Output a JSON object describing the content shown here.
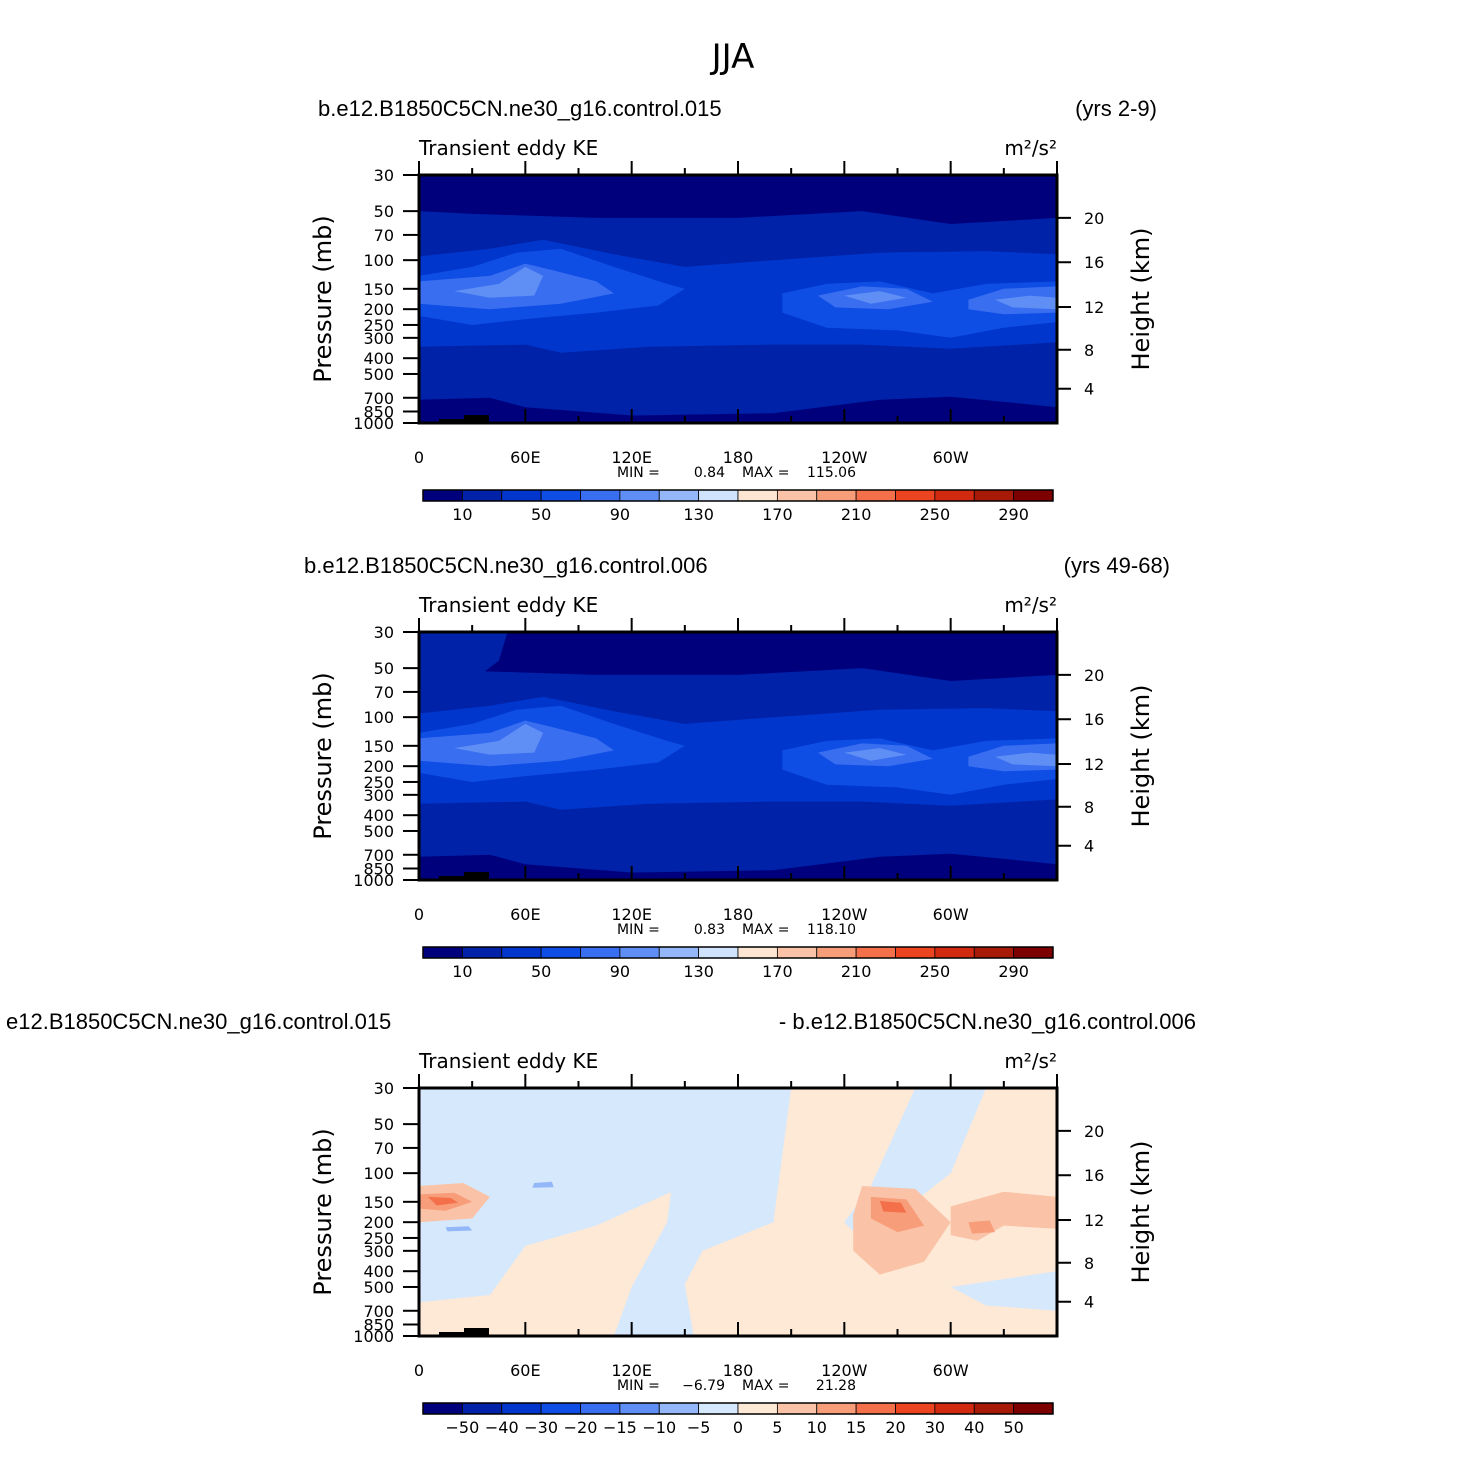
{
  "figure": {
    "season": "JJA"
  },
  "colorbars": {
    "abs": {
      "colors": [
        "#00007d",
        "#0022a8",
        "#0036cb",
        "#0f4ee5",
        "#3a6ef0",
        "#5f8ef5",
        "#93b7f8",
        "#cfe4fc",
        "#fde5d3",
        "#fac3a7",
        "#f79d7a",
        "#f4704a",
        "#ec4420",
        "#d12a10",
        "#a81a08",
        "#7d0000"
      ],
      "labels": [
        "10",
        "50",
        "90",
        "130",
        "170",
        "210",
        "250",
        "290"
      ],
      "label_slots": [
        1,
        3,
        5,
        7,
        9,
        11,
        13,
        15
      ]
    },
    "diff": {
      "colors": [
        "#00007d",
        "#0022a8",
        "#0036cb",
        "#0f4ee5",
        "#3a6ef0",
        "#5f8ef5",
        "#93b7f8",
        "#d6e8fb",
        "#fde9d6",
        "#fac3a7",
        "#f79d7a",
        "#f4704a",
        "#ec4420",
        "#d12a10",
        "#a81a08",
        "#7d0000"
      ],
      "labels": [
        "−50",
        "−40",
        "−30",
        "−20",
        "−15",
        "−10",
        "−5",
        "0",
        "5",
        "10",
        "15",
        "20",
        "30",
        "40",
        "50"
      ],
      "label_slots": [
        1,
        2,
        3,
        4,
        5,
        6,
        7,
        8,
        9,
        10,
        11,
        12,
        13,
        14,
        15
      ]
    }
  },
  "chart_data": [
    {
      "type": "heatmap",
      "case": "b.e12.B1850C5CN.ne30_g16.control.015",
      "years": "(yrs 2-9)",
      "variable": "Transient eddy KE",
      "units": "m²/s²",
      "ylabel": "Pressure (mb)",
      "ylabel_right": "Height (km)",
      "x_ticks": [
        "0",
        "60E",
        "120E",
        "180",
        "120W",
        "60W"
      ],
      "y_ticks": [
        "30",
        "50",
        "70",
        "100",
        "150",
        "200",
        "250",
        "300",
        "400",
        "500",
        "700",
        "850",
        "1000"
      ],
      "y_ticks_right": [
        "20",
        "16",
        "12",
        "8",
        "4"
      ],
      "min_label": "MIN =",
      "min_value": "0.84",
      "max_label": "MAX =",
      "max_value": "115.06",
      "colorbar": "abs",
      "levels": [
        10,
        30,
        50,
        70,
        90,
        110,
        130,
        150,
        170,
        190,
        210,
        230,
        250,
        270,
        290
      ]
    },
    {
      "type": "heatmap",
      "case": "b.e12.B1850C5CN.ne30_g16.control.006",
      "years": "(yrs 49-68)",
      "variable": "Transient eddy KE",
      "units": "m²/s²",
      "ylabel": "Pressure (mb)",
      "ylabel_right": "Height (km)",
      "x_ticks": [
        "0",
        "60E",
        "120E",
        "180",
        "120W",
        "60W"
      ],
      "y_ticks": [
        "30",
        "50",
        "70",
        "100",
        "150",
        "200",
        "250",
        "300",
        "400",
        "500",
        "700",
        "850",
        "1000"
      ],
      "y_ticks_right": [
        "20",
        "16",
        "12",
        "8",
        "4"
      ],
      "min_label": "MIN =",
      "min_value": "0.83",
      "max_label": "MAX =",
      "max_value": "118.10",
      "colorbar": "abs",
      "levels": [
        10,
        30,
        50,
        70,
        90,
        110,
        130,
        150,
        170,
        190,
        210,
        230,
        250,
        270,
        290
      ]
    },
    {
      "type": "heatmap",
      "case_left": "e12.B1850C5CN.ne30_g16.control.015",
      "case_right": "- b.e12.B1850C5CN.ne30_g16.control.006",
      "variable": "Transient eddy KE",
      "units": "m²/s²",
      "ylabel": "Pressure (mb)",
      "ylabel_right": "Height (km)",
      "x_ticks": [
        "0",
        "60E",
        "120E",
        "180",
        "120W",
        "60W"
      ],
      "y_ticks": [
        "30",
        "50",
        "70",
        "100",
        "150",
        "200",
        "250",
        "300",
        "400",
        "500",
        "700",
        "850",
        "1000"
      ],
      "y_ticks_right": [
        "20",
        "16",
        "12",
        "8",
        "4"
      ],
      "min_label": "MIN =",
      "min_value": "−6.79",
      "max_label": "MAX =",
      "max_value": "21.28",
      "colorbar": "diff",
      "levels": [
        -50,
        -40,
        -30,
        -20,
        -15,
        -10,
        -5,
        0,
        5,
        10,
        15,
        20,
        30,
        40,
        50
      ]
    }
  ]
}
